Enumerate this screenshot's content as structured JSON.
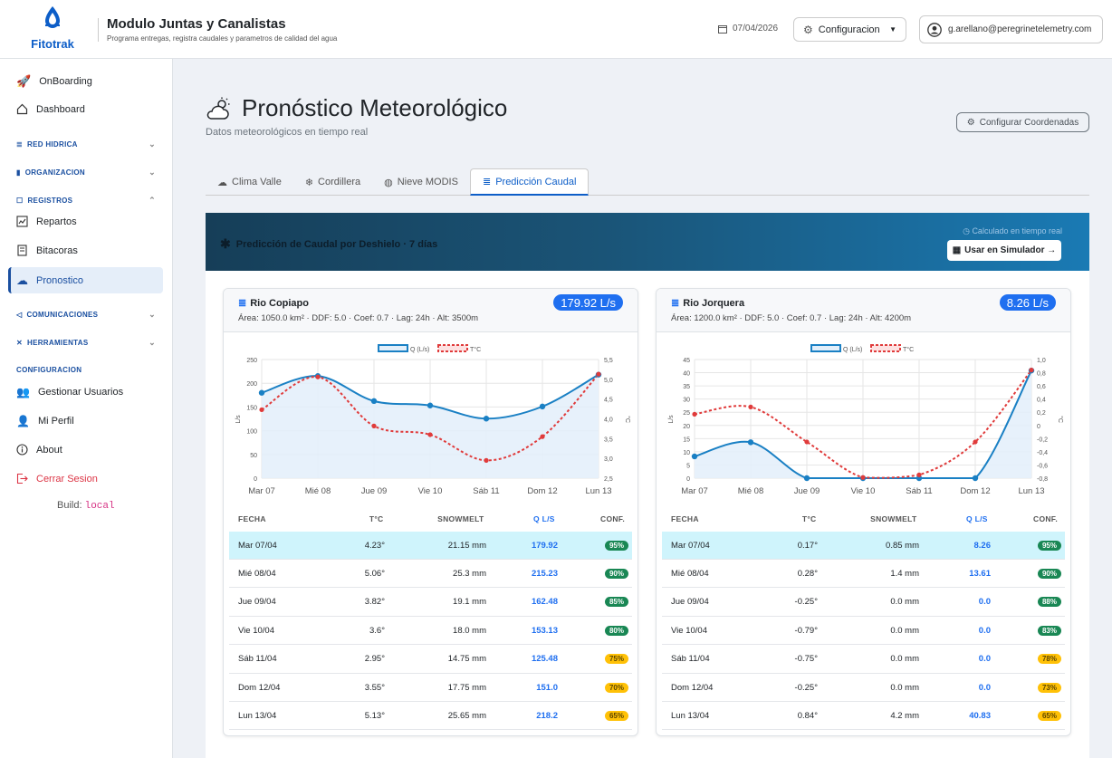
{
  "app": {
    "brand": "Fitotrak",
    "title": "Modulo Juntas y Canalistas",
    "subtitle": "Programa entregas, registra caudales y parametros de calidad del agua",
    "date": "07/04/2026",
    "config_label": "Configuracion",
    "user_email": "g.arellano@peregrinetelemetry.com"
  },
  "sidebar": {
    "onboarding": "OnBoarding",
    "dashboard": "Dashboard",
    "red_hidrica": "RED HIDRICA",
    "organizacion": "ORGANIZACION",
    "registros": "REGISTROS",
    "repartos": "Repartos",
    "bitacoras": "Bitacoras",
    "pronostico": "Pronostico",
    "comunicaciones": "COMUNICACIONES",
    "herramientas": "HERRAMIENTAS",
    "configuracion": "CONFIGURACION",
    "usuarios": "Gestionar Usuarios",
    "perfil": "Mi Perfil",
    "about": "About",
    "logout": "Cerrar Sesion",
    "build_label": "Build:",
    "build_value": "local"
  },
  "page": {
    "title": "Pronóstico Meteorológico",
    "subtitle": "Datos meteorológicos en tiempo real",
    "coord_button": "Configurar Coordenadas"
  },
  "tabs": [
    "Clima Valle",
    "Cordillera",
    "Nieve MODIS",
    "Predicción Caudal"
  ],
  "banner": {
    "title": "Predicción de Caudal por Deshielo · 7 días",
    "calc": "Calculado en tiempo real",
    "sim_button": "Usar en Simulador →"
  },
  "table_headers": [
    "FECHA",
    "T°C",
    "SNOWMELT",
    "Q L/S",
    "CONF."
  ],
  "colors": {
    "high": "#198754",
    "low": "#ffc107",
    "flow": "#1a80c4",
    "temp": "#e03b3b"
  },
  "cards": [
    {
      "name": "Rio Copiapo",
      "meta": "Área: 1050.0 km² · DDF: 5.0 · Coef: 0.7 · Lag: 24h · Alt: 3500m",
      "flow": "179.92 L/s",
      "rows": [
        {
          "fecha": "Mar 07/04",
          "t": "4.23°",
          "snow": "21.15 mm",
          "q": "179.92",
          "conf": "95%"
        },
        {
          "fecha": "Mié 08/04",
          "t": "5.06°",
          "snow": "25.3 mm",
          "q": "215.23",
          "conf": "90%"
        },
        {
          "fecha": "Jue 09/04",
          "t": "3.82°",
          "snow": "19.1 mm",
          "q": "162.48",
          "conf": "85%"
        },
        {
          "fecha": "Vie 10/04",
          "t": "3.6°",
          "snow": "18.0 mm",
          "q": "153.13",
          "conf": "80%"
        },
        {
          "fecha": "Sáb 11/04",
          "t": "2.95°",
          "snow": "14.75 mm",
          "q": "125.48",
          "conf": "75%"
        },
        {
          "fecha": "Dom 12/04",
          "t": "3.55°",
          "snow": "17.75 mm",
          "q": "151.0",
          "conf": "70%"
        },
        {
          "fecha": "Lun 13/04",
          "t": "5.13°",
          "snow": "25.65 mm",
          "q": "218.2",
          "conf": "65%"
        }
      ]
    },
    {
      "name": "Rio Jorquera",
      "meta": "Área: 1200.0 km² · DDF: 5.0 · Coef: 0.7 · Lag: 24h · Alt: 4200m",
      "flow": "8.26 L/s",
      "rows": [
        {
          "fecha": "Mar 07/04",
          "t": "0.17°",
          "snow": "0.85 mm",
          "q": "8.26",
          "conf": "95%"
        },
        {
          "fecha": "Mié 08/04",
          "t": "0.28°",
          "snow": "1.4 mm",
          "q": "13.61",
          "conf": "90%"
        },
        {
          "fecha": "Jue 09/04",
          "t": "-0.25°",
          "snow": "0.0 mm",
          "q": "0.0",
          "conf": "88%"
        },
        {
          "fecha": "Vie 10/04",
          "t": "-0.79°",
          "snow": "0.0 mm",
          "q": "0.0",
          "conf": "83%"
        },
        {
          "fecha": "Sáb 11/04",
          "t": "-0.75°",
          "snow": "0.0 mm",
          "q": "0.0",
          "conf": "78%"
        },
        {
          "fecha": "Dom 12/04",
          "t": "-0.25°",
          "snow": "0.0 mm",
          "q": "0.0",
          "conf": "73%"
        },
        {
          "fecha": "Lun 13/04",
          "t": "0.84°",
          "snow": "4.2 mm",
          "q": "40.83",
          "conf": "65%"
        }
      ]
    }
  ],
  "chart_data": [
    {
      "type": "line",
      "categories": [
        "Mar 07",
        "Mié 08",
        "Jue 09",
        "Vie 10",
        "Sáb 11",
        "Dom 12",
        "Lun 13"
      ],
      "series": [
        {
          "name": "Q (L/s)",
          "values": [
            179.92,
            215.23,
            162.48,
            153.13,
            125.48,
            151.0,
            218.2
          ]
        },
        {
          "name": "T°C",
          "values": [
            4.23,
            5.06,
            3.82,
            3.6,
            2.95,
            3.55,
            5.13
          ]
        }
      ],
      "ylabel": "L/s",
      "y2label": "°C",
      "ylim": [
        0,
        250
      ],
      "y2lim": [
        2.5,
        5.5
      ],
      "yticks": [
        "0",
        "50",
        "100",
        "150",
        "200",
        "250"
      ],
      "y2ticks": [
        "2,5",
        "3,0",
        "3,5",
        "4,0",
        "4,5",
        "5,0",
        "5,5"
      ]
    },
    {
      "type": "line",
      "categories": [
        "Mar 07",
        "Mié 08",
        "Jue 09",
        "Vie 10",
        "Sáb 11",
        "Dom 12",
        "Lun 13"
      ],
      "series": [
        {
          "name": "Q (L/s)",
          "values": [
            8.26,
            13.61,
            0.0,
            0.0,
            0.0,
            0.0,
            40.83
          ]
        },
        {
          "name": "T°C",
          "values": [
            0.17,
            0.28,
            -0.25,
            -0.79,
            -0.75,
            -0.25,
            0.84
          ]
        }
      ],
      "ylabel": "L/s",
      "y2label": "°C",
      "ylim": [
        0,
        45
      ],
      "y2lim": [
        -0.8,
        1.0
      ],
      "yticks": [
        "0",
        "5",
        "10",
        "15",
        "20",
        "25",
        "30",
        "35",
        "40",
        "45"
      ],
      "y2ticks": [
        "-0,8",
        "-0,6",
        "-0,4",
        "-0,2",
        "0",
        "0,2",
        "0,4",
        "0,6",
        "0,8",
        "1,0"
      ]
    }
  ]
}
